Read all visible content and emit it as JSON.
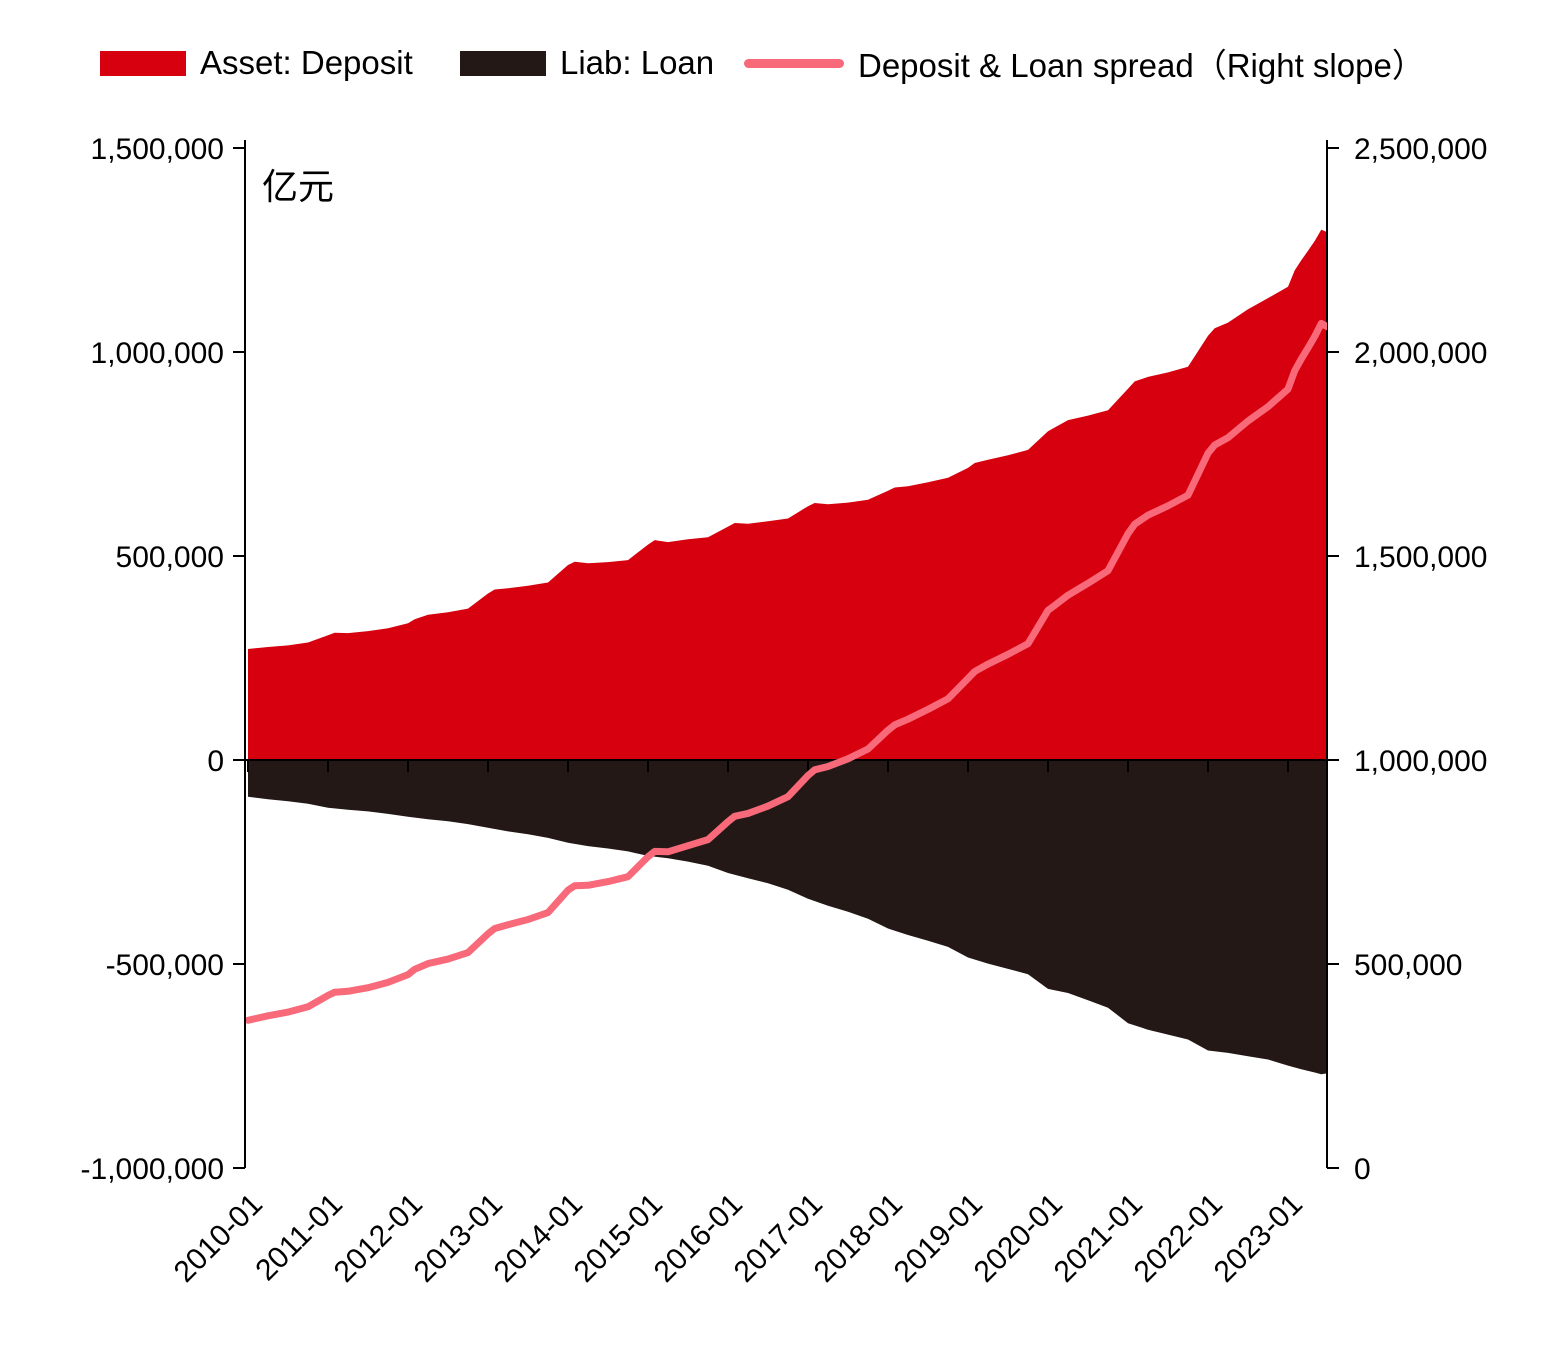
{
  "unit_label": "亿元",
  "legend": [
    {
      "label": "Asset: Deposit",
      "color": "#d7000f",
      "type": "area"
    },
    {
      "label": "Liab: Loan",
      "color": "#231815",
      "type": "area"
    },
    {
      "label": "Deposit & Loan spread（Right slope）",
      "color": "#f8697a",
      "type": "line"
    }
  ],
  "chart_data": {
    "type": "area",
    "title": "",
    "unit_label": "亿元",
    "grid": false,
    "legend_position": "top",
    "x_axis": {
      "tick_labels": [
        "2010-01",
        "2011-01",
        "2012-01",
        "2013-01",
        "2014-01",
        "2015-01",
        "2016-01",
        "2017-01",
        "2018-01",
        "2019-01",
        "2020-01",
        "2021-01",
        "2022-01",
        "2023-01"
      ],
      "label_rotation_deg": -45,
      "range_months": [
        "2010-01",
        "2023-07"
      ]
    },
    "y_axis_left": {
      "range": [
        -1000000,
        1500000
      ],
      "ticks": [
        {
          "value": 1500000,
          "label": "1,500,000"
        },
        {
          "value": 1000000,
          "label": "1,000,000"
        },
        {
          "value": 500000,
          "label": "500,000"
        },
        {
          "value": 0,
          "label": "0"
        },
        {
          "value": -500000,
          "label": "-500,000"
        },
        {
          "value": -1000000,
          "label": "-1,000,000"
        }
      ]
    },
    "y_axis_right": {
      "range": [
        0,
        2500000
      ],
      "ticks": [
        {
          "value": 2500000,
          "label": "2,500,000"
        },
        {
          "value": 2000000,
          "label": "2,000,000"
        },
        {
          "value": 1500000,
          "label": "1,500,000"
        },
        {
          "value": 1000000,
          "label": "1,000,000"
        },
        {
          "value": 500000,
          "label": "500,000"
        },
        {
          "value": 0,
          "label": "0"
        }
      ]
    },
    "series": [
      {
        "name": "Asset: Deposit",
        "render": "area",
        "axis": "left",
        "plot_sign": 1,
        "color": "#d7000f",
        "points": [
          [
            "2010-01",
            272000
          ],
          [
            "2010-04",
            277000
          ],
          [
            "2010-07",
            281000
          ],
          [
            "2010-10",
            288000
          ],
          [
            "2011-01",
            306000
          ],
          [
            "2011-02",
            312000
          ],
          [
            "2011-04",
            311000
          ],
          [
            "2011-07",
            316000
          ],
          [
            "2011-10",
            323000
          ],
          [
            "2012-01",
            335000
          ],
          [
            "2012-02",
            345000
          ],
          [
            "2012-04",
            356000
          ],
          [
            "2012-07",
            362000
          ],
          [
            "2012-10",
            371000
          ],
          [
            "2013-01",
            408000
          ],
          [
            "2013-02",
            418000
          ],
          [
            "2013-04",
            421000
          ],
          [
            "2013-07",
            427000
          ],
          [
            "2013-10",
            435000
          ],
          [
            "2014-01",
            478000
          ],
          [
            "2014-02",
            486000
          ],
          [
            "2014-04",
            482000
          ],
          [
            "2014-07",
            485000
          ],
          [
            "2014-10",
            490000
          ],
          [
            "2015-01",
            528000
          ],
          [
            "2015-02",
            539000
          ],
          [
            "2015-04",
            534000
          ],
          [
            "2015-07",
            541000
          ],
          [
            "2015-10",
            546000
          ],
          [
            "2016-01",
            572000
          ],
          [
            "2016-02",
            581000
          ],
          [
            "2016-04",
            579000
          ],
          [
            "2016-07",
            585000
          ],
          [
            "2016-10",
            592000
          ],
          [
            "2017-01",
            622000
          ],
          [
            "2017-02",
            630000
          ],
          [
            "2017-04",
            627000
          ],
          [
            "2017-07",
            631000
          ],
          [
            "2017-10",
            638000
          ],
          [
            "2018-01",
            660000
          ],
          [
            "2018-02",
            668000
          ],
          [
            "2018-04",
            671000
          ],
          [
            "2018-07",
            681000
          ],
          [
            "2018-10",
            692000
          ],
          [
            "2019-01",
            716000
          ],
          [
            "2019-02",
            728000
          ],
          [
            "2019-04",
            736000
          ],
          [
            "2019-07",
            747000
          ],
          [
            "2019-10",
            760000
          ],
          [
            "2020-01",
            806000
          ],
          [
            "2020-02",
            815000
          ],
          [
            "2020-04",
            833000
          ],
          [
            "2020-07",
            844000
          ],
          [
            "2020-10",
            857000
          ],
          [
            "2021-01",
            910000
          ],
          [
            "2021-02",
            928000
          ],
          [
            "2021-04",
            939000
          ],
          [
            "2021-07",
            950000
          ],
          [
            "2021-10",
            964000
          ],
          [
            "2022-01",
            1040000
          ],
          [
            "2022-02",
            1058000
          ],
          [
            "2022-04",
            1072000
          ],
          [
            "2022-07",
            1105000
          ],
          [
            "2022-10",
            1132000
          ],
          [
            "2023-01",
            1160000
          ],
          [
            "2023-02",
            1200000
          ],
          [
            "2023-03",
            1225000
          ],
          [
            "2023-04",
            1248000
          ],
          [
            "2023-05",
            1272000
          ],
          [
            "2023-06",
            1300000
          ],
          [
            "2023-07",
            1293000
          ]
        ]
      },
      {
        "name": "Liab: Loan",
        "render": "area",
        "axis": "left",
        "plot_sign": -1,
        "color": "#231815",
        "points": [
          [
            "2010-01",
            90000
          ],
          [
            "2010-04",
            96000
          ],
          [
            "2010-07",
            101000
          ],
          [
            "2010-10",
            107000
          ],
          [
            "2011-01",
            117000
          ],
          [
            "2011-04",
            122000
          ],
          [
            "2011-07",
            126000
          ],
          [
            "2011-10",
            132000
          ],
          [
            "2012-01",
            139000
          ],
          [
            "2012-04",
            145000
          ],
          [
            "2012-07",
            150000
          ],
          [
            "2012-10",
            157000
          ],
          [
            "2013-01",
            166000
          ],
          [
            "2013-04",
            175000
          ],
          [
            "2013-07",
            182000
          ],
          [
            "2013-10",
            191000
          ],
          [
            "2014-01",
            203000
          ],
          [
            "2014-04",
            211000
          ],
          [
            "2014-07",
            217000
          ],
          [
            "2014-10",
            224000
          ],
          [
            "2015-01",
            235000
          ],
          [
            "2015-04",
            241000
          ],
          [
            "2015-07",
            249000
          ],
          [
            "2015-10",
            259000
          ],
          [
            "2016-01",
            277000
          ],
          [
            "2016-04",
            290000
          ],
          [
            "2016-07",
            302000
          ],
          [
            "2016-10",
            318000
          ],
          [
            "2017-01",
            340000
          ],
          [
            "2017-04",
            357000
          ],
          [
            "2017-07",
            372000
          ],
          [
            "2017-10",
            389000
          ],
          [
            "2018-01",
            413000
          ],
          [
            "2018-04",
            429000
          ],
          [
            "2018-07",
            443000
          ],
          [
            "2018-10",
            458000
          ],
          [
            "2019-01",
            484000
          ],
          [
            "2019-04",
            499000
          ],
          [
            "2019-07",
            512000
          ],
          [
            "2019-10",
            525000
          ],
          [
            "2020-01",
            561000
          ],
          [
            "2020-04",
            571000
          ],
          [
            "2020-07",
            589000
          ],
          [
            "2020-10",
            607000
          ],
          [
            "2021-01",
            645000
          ],
          [
            "2021-04",
            661000
          ],
          [
            "2021-07",
            673000
          ],
          [
            "2021-10",
            685000
          ],
          [
            "2022-01",
            712000
          ],
          [
            "2022-04",
            718000
          ],
          [
            "2022-07",
            726000
          ],
          [
            "2022-10",
            734000
          ],
          [
            "2023-01",
            749000
          ],
          [
            "2023-03",
            758000
          ],
          [
            "2023-05",
            766000
          ],
          [
            "2023-06",
            770000
          ],
          [
            "2023-07",
            768000
          ]
        ]
      },
      {
        "name": "Deposit & Loan spread（Right slope）",
        "render": "line",
        "axis": "right",
        "plot_sign": 1,
        "color": "#f8697a",
        "stroke_width": 7,
        "points": [
          [
            "2010-01",
            362000
          ],
          [
            "2010-04",
            373000
          ],
          [
            "2010-07",
            382000
          ],
          [
            "2010-10",
            395000
          ],
          [
            "2011-01",
            423000
          ],
          [
            "2011-02",
            431000
          ],
          [
            "2011-04",
            433000
          ],
          [
            "2011-07",
            442000
          ],
          [
            "2011-10",
            455000
          ],
          [
            "2012-01",
            474000
          ],
          [
            "2012-02",
            487000
          ],
          [
            "2012-04",
            501000
          ],
          [
            "2012-07",
            512000
          ],
          [
            "2012-10",
            528000
          ],
          [
            "2013-01",
            574000
          ],
          [
            "2013-02",
            587000
          ],
          [
            "2013-04",
            596000
          ],
          [
            "2013-07",
            609000
          ],
          [
            "2013-10",
            626000
          ],
          [
            "2014-01",
            681000
          ],
          [
            "2014-02",
            692000
          ],
          [
            "2014-04",
            693000
          ],
          [
            "2014-07",
            702000
          ],
          [
            "2014-10",
            714000
          ],
          [
            "2015-01",
            763000
          ],
          [
            "2015-02",
            776000
          ],
          [
            "2015-04",
            775000
          ],
          [
            "2015-07",
            790000
          ],
          [
            "2015-10",
            805000
          ],
          [
            "2016-01",
            849000
          ],
          [
            "2016-02",
            862000
          ],
          [
            "2016-04",
            869000
          ],
          [
            "2016-07",
            887000
          ],
          [
            "2016-10",
            910000
          ],
          [
            "2017-01",
            962000
          ],
          [
            "2017-02",
            976000
          ],
          [
            "2017-04",
            984000
          ],
          [
            "2017-07",
            1003000
          ],
          [
            "2017-10",
            1027000
          ],
          [
            "2018-01",
            1073000
          ],
          [
            "2018-02",
            1086000
          ],
          [
            "2018-04",
            1100000
          ],
          [
            "2018-07",
            1124000
          ],
          [
            "2018-10",
            1150000
          ],
          [
            "2019-01",
            1200000
          ],
          [
            "2019-02",
            1217000
          ],
          [
            "2019-04",
            1235000
          ],
          [
            "2019-07",
            1259000
          ],
          [
            "2019-10",
            1285000
          ],
          [
            "2020-01",
            1367000
          ],
          [
            "2020-02",
            1379000
          ],
          [
            "2020-04",
            1404000
          ],
          [
            "2020-07",
            1433000
          ],
          [
            "2020-10",
            1464000
          ],
          [
            "2021-01",
            1555000
          ],
          [
            "2021-02",
            1578000
          ],
          [
            "2021-04",
            1600000
          ],
          [
            "2021-07",
            1623000
          ],
          [
            "2021-10",
            1649000
          ],
          [
            "2022-01",
            1752000
          ],
          [
            "2022-02",
            1772000
          ],
          [
            "2022-04",
            1790000
          ],
          [
            "2022-07",
            1831000
          ],
          [
            "2022-10",
            1866000
          ],
          [
            "2023-01",
            1909000
          ],
          [
            "2023-02",
            1954000
          ],
          [
            "2023-03",
            1983000
          ],
          [
            "2023-04",
            2010000
          ],
          [
            "2023-05",
            2038000
          ],
          [
            "2023-06",
            2070000
          ],
          [
            "2023-07",
            2061000
          ]
        ]
      }
    ]
  }
}
